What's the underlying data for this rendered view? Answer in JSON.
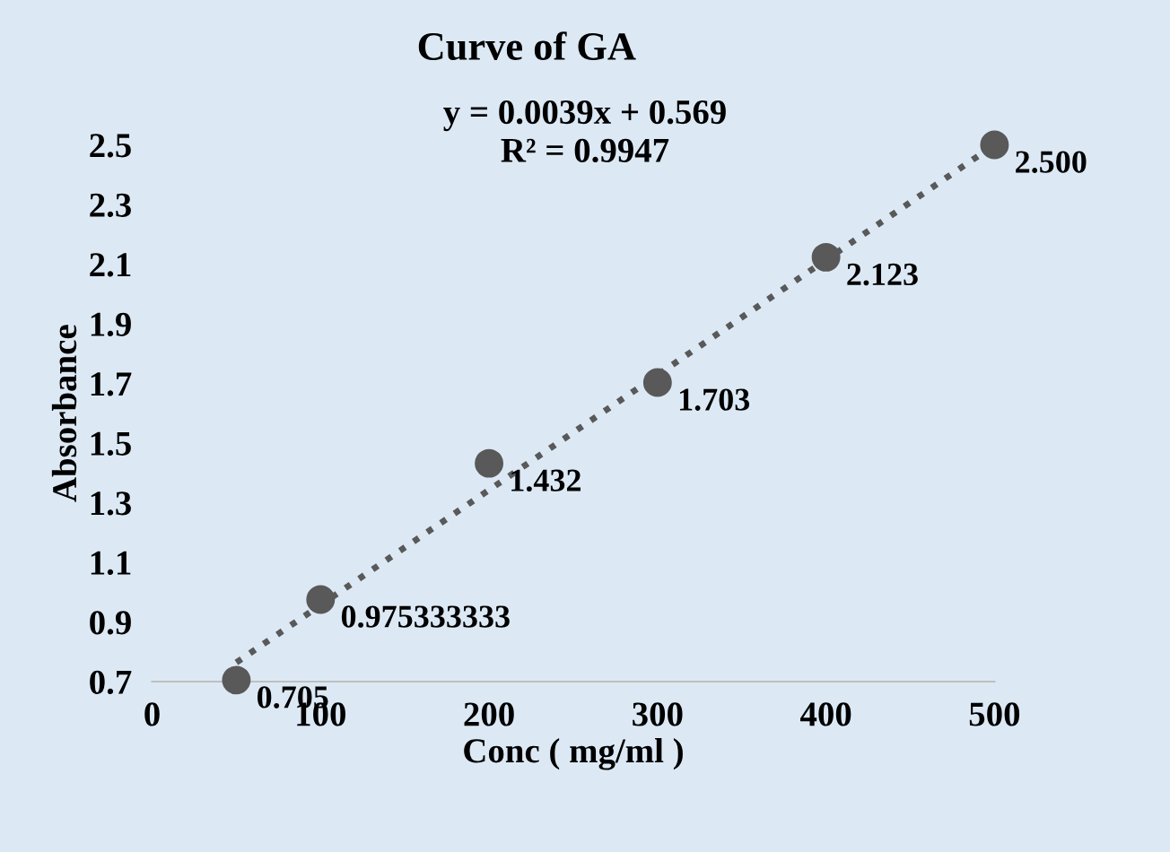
{
  "chart_data": {
    "type": "scatter",
    "title": "Curve of GA",
    "xlabel": "Conc ( mg/ml )",
    "ylabel": "Absorbance",
    "xlim": [
      0,
      500
    ],
    "xticks": [
      0,
      100,
      200,
      300,
      400,
      500
    ],
    "ylim": [
      0.7,
      2.5
    ],
    "yticks": [
      0.7,
      0.9,
      1.1,
      1.3,
      1.5,
      1.7,
      1.9,
      2.1,
      2.3,
      2.5
    ],
    "grid": false,
    "legend": false,
    "annotations": [
      "y = 0.0039x + 0.569",
      "R² = 0.9947"
    ],
    "series": [
      {
        "marker": "circle",
        "color": "#595959",
        "x": [
          50,
          100,
          200,
          300,
          400,
          500
        ],
        "values": [
          0.705,
          0.975333333,
          1.432,
          1.703,
          2.123,
          2.5
        ],
        "value_labels": [
          "0.705",
          "0.975333333",
          "1.432",
          "1.703",
          "2.123",
          "2.500"
        ]
      },
      {
        "type": "line",
        "marker": "none",
        "color": "#595959",
        "line_style": "dotted",
        "x": [
          50,
          500
        ],
        "values": [
          0.764,
          2.5
        ]
      }
    ]
  }
}
